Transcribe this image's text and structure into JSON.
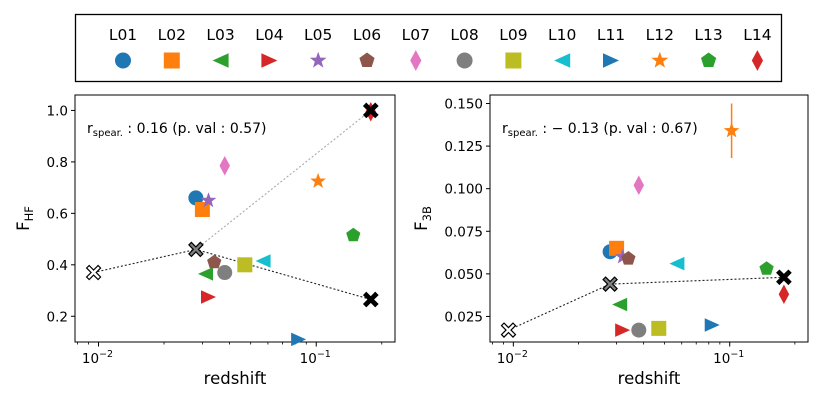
{
  "legend": {
    "entries": [
      {
        "label": "L01",
        "color": "#1f77b4",
        "marker": "circle"
      },
      {
        "label": "L02",
        "color": "#ff7f0e",
        "marker": "square"
      },
      {
        "label": "L03",
        "color": "#2ca02c",
        "marker": "triangle-left"
      },
      {
        "label": "L04",
        "color": "#d62728",
        "marker": "triangle-right"
      },
      {
        "label": "L05",
        "color": "#9467bd",
        "marker": "star"
      },
      {
        "label": "L06",
        "color": "#8c564b",
        "marker": "pentagon"
      },
      {
        "label": "L07",
        "color": "#e377c2",
        "marker": "diamond"
      },
      {
        "label": "L08",
        "color": "#7f7f7f",
        "marker": "circle"
      },
      {
        "label": "L09",
        "color": "#bcbd22",
        "marker": "square"
      },
      {
        "label": "L10",
        "color": "#17becf",
        "marker": "triangle-left"
      },
      {
        "label": "L11",
        "color": "#1f77b4",
        "marker": "triangle-right"
      },
      {
        "label": "L12",
        "color": "#ff7f0e",
        "marker": "star"
      },
      {
        "label": "L13",
        "color": "#2ca02c",
        "marker": "pentagon"
      },
      {
        "label": "L14",
        "color": "#d62728",
        "marker": "diamond"
      }
    ]
  },
  "chart_data": [
    {
      "type": "scatter",
      "xlabel": "redshift",
      "ylabel_main": "F",
      "ylabel_sub": "HF",
      "xscale": "log",
      "xlim": [
        0.0078,
        0.23
      ],
      "ylim": [
        0.1,
        1.06
      ],
      "xticks": [
        {
          "value": 0.01,
          "base": "10",
          "exp": "−2"
        },
        {
          "value": 0.1,
          "base": "10",
          "exp": "−1"
        }
      ],
      "yticks": [
        {
          "value": 0.2,
          "label": "0.2"
        },
        {
          "value": 0.4,
          "label": "0.4"
        },
        {
          "value": 0.6,
          "label": "0.6"
        },
        {
          "value": 0.8,
          "label": "0.8"
        },
        {
          "value": 1.0,
          "label": "1.0"
        }
      ],
      "annotation": {
        "prefix": "r",
        "sub": "spear.",
        "rest": " :  0.16 (p. val :  0.57)"
      },
      "points": [
        {
          "x": 0.028,
          "y": 0.66
        },
        {
          "x": 0.03,
          "y": 0.615
        },
        {
          "x": 0.031,
          "y": 0.365
        },
        {
          "x": 0.032,
          "y": 0.275
        },
        {
          "x": 0.032,
          "y": 0.65
        },
        {
          "x": 0.034,
          "y": 0.41
        },
        {
          "x": 0.038,
          "y": 0.785
        },
        {
          "x": 0.038,
          "y": 0.37
        },
        {
          "x": 0.047,
          "y": 0.4
        },
        {
          "x": 0.057,
          "y": 0.415
        },
        {
          "x": 0.083,
          "y": 0.11
        },
        {
          "x": 0.102,
          "y": 0.725
        },
        {
          "x": 0.148,
          "y": 0.515
        },
        {
          "x": 0.178,
          "y": 0.995
        }
      ],
      "summary": [
        {
          "x": 0.0095,
          "y": 0.37,
          "fill": "#ffffff"
        },
        {
          "x": 0.028,
          "y": 0.46,
          "fill": "#808080"
        },
        {
          "x": 0.178,
          "y": 0.265,
          "fill": "#000000"
        },
        {
          "x": 0.178,
          "y": 1.0,
          "fill": "#000000"
        }
      ],
      "lines": [
        {
          "points": [
            [
              0.0095,
              0.37
            ],
            [
              0.028,
              0.46
            ],
            [
              0.178,
              0.265
            ]
          ],
          "color": "#222222",
          "dash": "2,2"
        },
        {
          "points": [
            [
              0.028,
              0.46
            ],
            [
              0.178,
              1.0
            ]
          ],
          "color": "#aaaaaa",
          "dash": "2,2"
        }
      ],
      "errorbars": [
        {
          "x": 0.178,
          "y": 0.995,
          "yerr": 0.03,
          "series": 13
        }
      ]
    },
    {
      "type": "scatter",
      "xlabel": "redshift",
      "ylabel_main": "F",
      "ylabel_sub": "3B",
      "xscale": "log",
      "xlim": [
        0.0078,
        0.23
      ],
      "ylim": [
        0.01,
        0.155
      ],
      "xticks": [
        {
          "value": 0.01,
          "base": "10",
          "exp": "−2"
        },
        {
          "value": 0.1,
          "base": "10",
          "exp": "−1"
        }
      ],
      "yticks": [
        {
          "value": 0.025,
          "label": "0.025"
        },
        {
          "value": 0.05,
          "label": "0.050"
        },
        {
          "value": 0.075,
          "label": "0.075"
        },
        {
          "value": 0.1,
          "label": "0.100"
        },
        {
          "value": 0.125,
          "label": "0.125"
        },
        {
          "value": 0.15,
          "label": "0.150"
        }
      ],
      "annotation": {
        "prefix": "r",
        "sub": "spear.",
        "rest": " :  − 0.13 (p. val :  0.67)"
      },
      "points": [
        {
          "x": 0.028,
          "y": 0.063
        },
        {
          "x": 0.03,
          "y": 0.065
        },
        {
          "x": 0.031,
          "y": 0.032
        },
        {
          "x": 0.032,
          "y": 0.017
        },
        {
          "x": 0.032,
          "y": 0.06
        },
        {
          "x": 0.034,
          "y": 0.059
        },
        {
          "x": 0.038,
          "y": 0.102
        },
        {
          "x": 0.038,
          "y": 0.017
        },
        {
          "x": 0.047,
          "y": 0.018
        },
        {
          "x": 0.057,
          "y": 0.056
        },
        {
          "x": 0.083,
          "y": 0.02
        },
        {
          "x": 0.102,
          "y": 0.134
        },
        {
          "x": 0.148,
          "y": 0.053
        },
        {
          "x": 0.178,
          "y": 0.038
        }
      ],
      "summary": [
        {
          "x": 0.0095,
          "y": 0.017,
          "fill": "#ffffff"
        },
        {
          "x": 0.028,
          "y": 0.044,
          "fill": "#808080"
        },
        {
          "x": 0.178,
          "y": 0.048,
          "fill": "#000000"
        }
      ],
      "lines": [
        {
          "points": [
            [
              0.0095,
              0.017
            ],
            [
              0.028,
              0.044
            ],
            [
              0.178,
              0.048
            ]
          ],
          "color": "#222222",
          "dash": "2,2"
        }
      ],
      "errorbars": [
        {
          "x": 0.102,
          "y": 0.134,
          "yerr": 0.016,
          "series": 11
        },
        {
          "x": 0.178,
          "y": 0.038,
          "yerr": 0.003,
          "series": 13
        }
      ]
    }
  ]
}
